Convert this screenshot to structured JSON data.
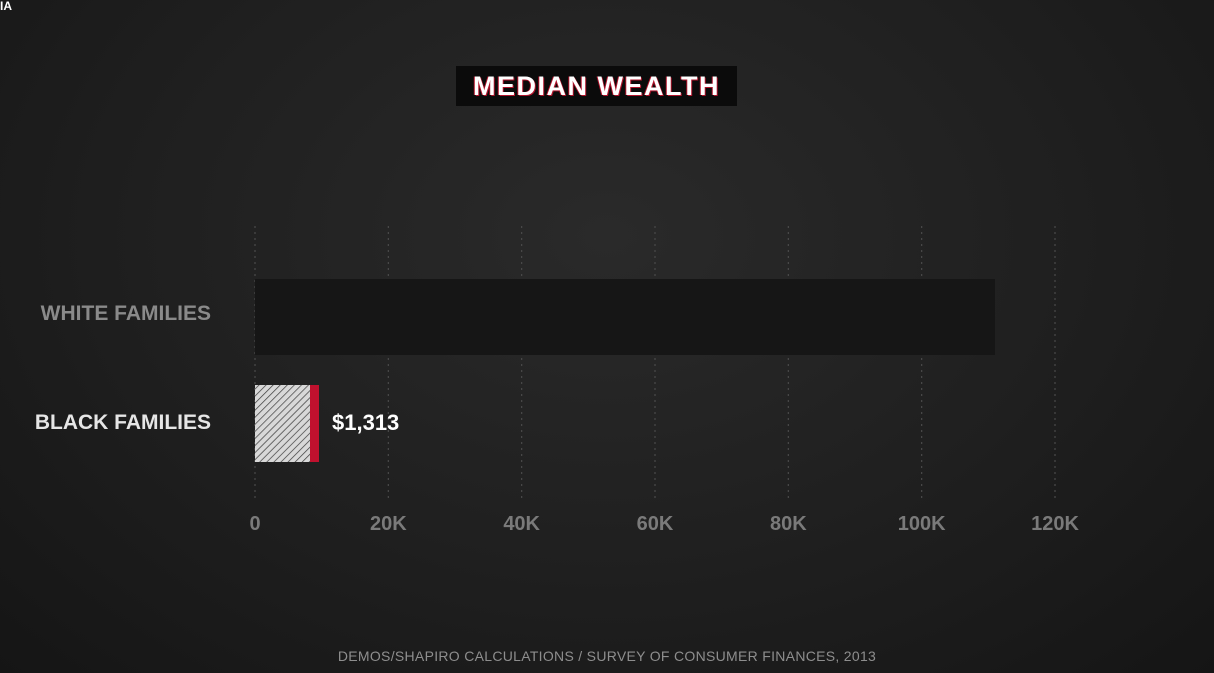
{
  "corner_text": "IA",
  "chart_data": {
    "type": "bar",
    "orientation": "horizontal",
    "title": "MEDIAN WEALTH",
    "categories": [
      "WHITE FAMILIES",
      "BLACK FAMILIES"
    ],
    "values": [
      111000,
      9600
    ],
    "data_labels": [
      "",
      "$1,313"
    ],
    "xticks": [
      0,
      20000,
      40000,
      60000,
      80000,
      100000,
      120000
    ],
    "xtick_labels": [
      "0",
      "20K",
      "40K",
      "60K",
      "80K",
      "100K",
      "120K"
    ],
    "xlim": [
      0,
      120000
    ],
    "grid": "vertical-dotted",
    "colors": {
      "white_bar": "#161616",
      "black_bar_fill": "#d8d8d8",
      "black_bar_accent": "#c0112e",
      "white_label": "#8a8a8a",
      "black_label": "#e6e6e6",
      "tick_label": "#7a7a7a",
      "grid": "#4a4a4a"
    }
  },
  "source": "DEMOS/SHAPIRO CALCULATIONS / SURVEY OF CONSUMER FINANCES, 2013"
}
